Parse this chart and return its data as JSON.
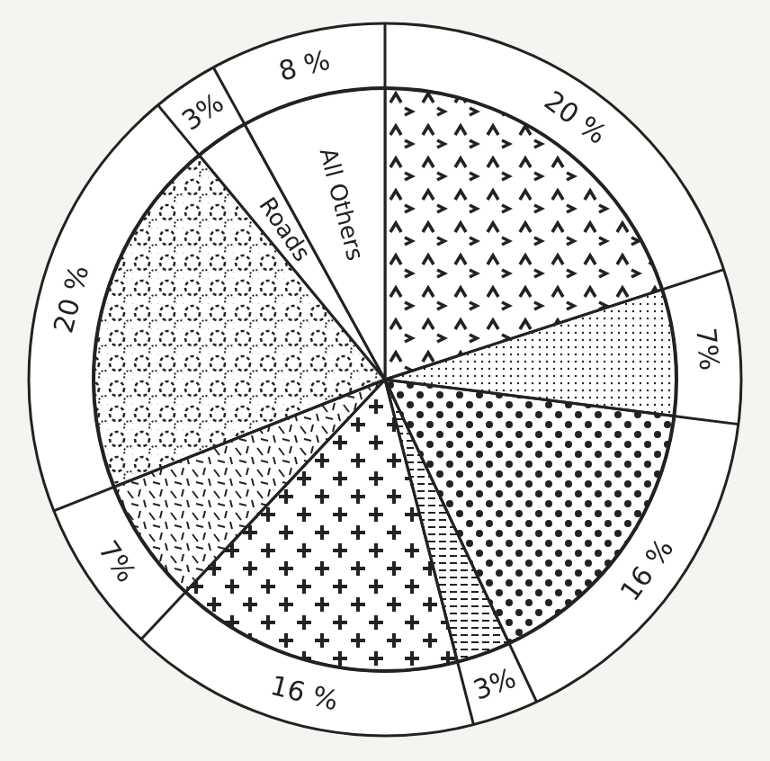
{
  "chart_data": {
    "type": "pie",
    "categories": [
      null,
      null,
      null,
      null,
      null,
      null,
      null,
      "Roads",
      "All Others"
    ],
    "values": [
      20,
      7,
      16,
      3,
      16,
      7,
      20,
      3,
      8
    ],
    "value_labels": [
      "20 %",
      "7%",
      "16 %",
      "3%",
      "16 %",
      "7%",
      "20 %",
      "3%",
      "8 %"
    ]
  }
}
